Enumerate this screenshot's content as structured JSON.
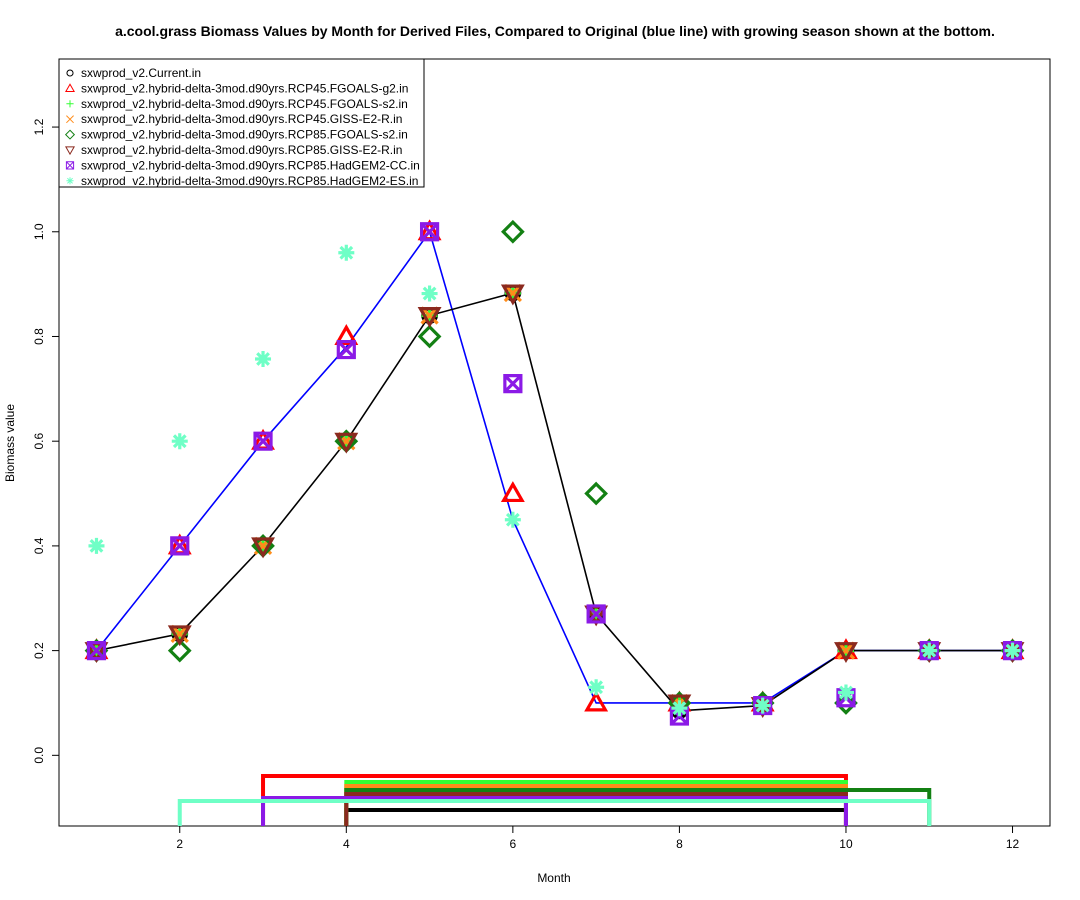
{
  "chart_data": {
    "type": "scatter",
    "title": "a.cool.grass Biomass Values by Month for Derived Files, Compared to Original (blue line) with growing season shown at the bottom.",
    "xlabel": "Month",
    "ylabel": "Biomass value",
    "xlim": [
      0.55,
      12.45
    ],
    "ylim": [
      -0.135,
      1.33
    ],
    "x_ticks": [
      2,
      4,
      6,
      8,
      10,
      12
    ],
    "y_ticks": [
      0.0,
      0.2,
      0.4,
      0.6,
      0.8,
      1.0,
      1.2
    ],
    "y_tick_labels": [
      "0.0",
      "0.2",
      "0.4",
      "0.6",
      "0.8",
      "1.0",
      "1.2"
    ],
    "legend_position": "top-left",
    "x": [
      1,
      2,
      3,
      4,
      5,
      6,
      7,
      8,
      9,
      10,
      11,
      12
    ],
    "original_line": {
      "color": "#0000ff",
      "values": [
        0.2,
        0.4,
        0.6,
        0.78,
        1.0,
        0.45,
        0.1,
        0.1,
        0.1,
        0.2,
        0.2,
        0.2
      ]
    },
    "series": [
      {
        "name": "sxwprod_v2.Current.in",
        "color": "#000000",
        "marker": "circle",
        "connect": true,
        "values": [
          0.2,
          0.232,
          0.4,
          0.6,
          0.84,
          0.883,
          0.27,
          0.085,
          0.095,
          0.2,
          0.2,
          0.2
        ],
        "season": [
          4,
          10
        ]
      },
      {
        "name": "sxwprod_v2.hybrid-delta-3mod.d90yrs.RCP45.FGOALS-g2.in",
        "color": "#ff0000",
        "marker": "triangle",
        "values": [
          0.2,
          0.4,
          0.6,
          0.8,
          1.0,
          0.5,
          0.1,
          0.1,
          0.1,
          0.2,
          0.2,
          0.2
        ],
        "season": [
          3,
          10
        ]
      },
      {
        "name": "sxwprod_v2.hybrid-delta-3mod.d90yrs.RCP45.FGOALS-s2.in",
        "color": "#33ff33",
        "marker": "plus",
        "values": [
          0.2,
          0.232,
          0.4,
          0.6,
          0.84,
          0.883,
          0.27,
          0.1,
          0.095,
          0.2,
          0.2,
          0.2
        ],
        "season": [
          4,
          10
        ]
      },
      {
        "name": "sxwprod_v2.hybrid-delta-3mod.d90yrs.RCP45.GISS-E2-R.in",
        "color": "#ff8c1a",
        "marker": "cross",
        "values": [
          0.2,
          0.232,
          0.4,
          0.6,
          0.84,
          0.883,
          0.27,
          0.1,
          0.095,
          0.2,
          0.2,
          0.2
        ],
        "season": [
          4,
          10
        ]
      },
      {
        "name": "sxwprod_v2.hybrid-delta-3mod.d90yrs.RCP85.FGOALS-s2.in",
        "color": "#138013",
        "marker": "diamond",
        "values": [
          0.2,
          0.2,
          0.4,
          0.6,
          0.8,
          1.0,
          0.5,
          0.1,
          0.1,
          0.1,
          0.2,
          0.2
        ],
        "season": [
          4,
          11
        ]
      },
      {
        "name": "sxwprod_v2.hybrid-delta-3mod.d90yrs.RCP85.GISS-E2-R.in",
        "color": "#8b2a1f",
        "marker": "triangle-down",
        "values": [
          0.2,
          0.232,
          0.4,
          0.6,
          0.84,
          0.883,
          0.27,
          0.1,
          0.095,
          0.2,
          0.2,
          0.2
        ],
        "season": [
          4,
          10
        ]
      },
      {
        "name": "sxwprod_v2.hybrid-delta-3mod.d90yrs.RCP85.HadGEM2-CC.in",
        "color": "#8b1ae6",
        "marker": "square-x",
        "values": [
          0.2,
          0.4,
          0.6,
          0.775,
          1.0,
          0.71,
          0.27,
          0.075,
          0.095,
          0.11,
          0.2,
          0.2
        ],
        "season": [
          3,
          10
        ]
      },
      {
        "name": "sxwprod_v2.hybrid-delta-3mod.d90yrs.RCP85.HadGEM2-ES.in",
        "color": "#6fffc6",
        "marker": "asterisk",
        "values": [
          0.4,
          0.6,
          0.757,
          0.96,
          0.882,
          0.45,
          0.13,
          0.09,
          0.095,
          0.12,
          0.2,
          0.2
        ],
        "season": [
          2,
          11
        ]
      }
    ]
  }
}
